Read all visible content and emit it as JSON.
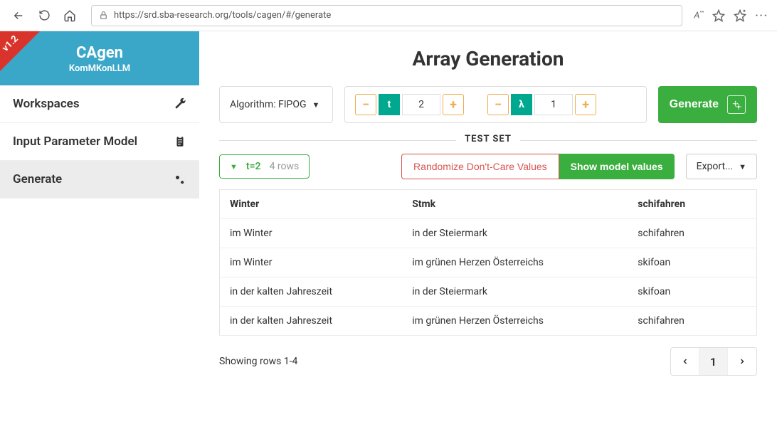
{
  "browser": {
    "url": "https://srd.sba-research.org/tools/cagen/#/generate",
    "read_aloud": "Aᵢ"
  },
  "sidebar": {
    "version": "v1.2",
    "title": "CAgen",
    "subtitle": "KomMKonLLM",
    "items": [
      {
        "label": "Workspaces",
        "icon": "wrench-icon",
        "active": false
      },
      {
        "label": "Input Parameter Model",
        "icon": "clipboard-icon",
        "active": false
      },
      {
        "label": "Generate",
        "icon": "gears-icon",
        "active": true
      }
    ]
  },
  "main": {
    "title": "Array Generation",
    "algorithm_label": "Algorithm: FIPOG",
    "t_label": "t",
    "t_value": "2",
    "lambda_label": "λ",
    "lambda_value": "1",
    "generate_label": "Generate",
    "testset_label": "TEST SET",
    "summary_t": "t=2",
    "summary_rows": "4 rows",
    "randomize_label": "Randomize Don't-Care Values",
    "show_model_label": "Show model values",
    "export_label": "Export...",
    "table": {
      "columns": [
        "Winter",
        "Stmk",
        "schifahren"
      ],
      "rows": [
        [
          "im Winter",
          "in der Steiermark",
          "schifahren"
        ],
        [
          "im Winter",
          "im grünen Herzen Österreichs",
          "skifoan"
        ],
        [
          "in der kalten Jahreszeit",
          "in der Steiermark",
          "skifoan"
        ],
        [
          "in der kalten Jahreszeit",
          "im grünen Herzen Österreichs",
          "schifahren"
        ]
      ]
    },
    "showing_text": "Showing rows 1-4",
    "page_current": "1"
  },
  "colors": {
    "brand_bg": "#3aa7c9",
    "accent_green": "#3aae3f",
    "accent_teal": "#00a88f",
    "accent_orange": "#f0ad4e",
    "accent_red": "#d9534f",
    "ribbon_red": "#d9342b"
  }
}
